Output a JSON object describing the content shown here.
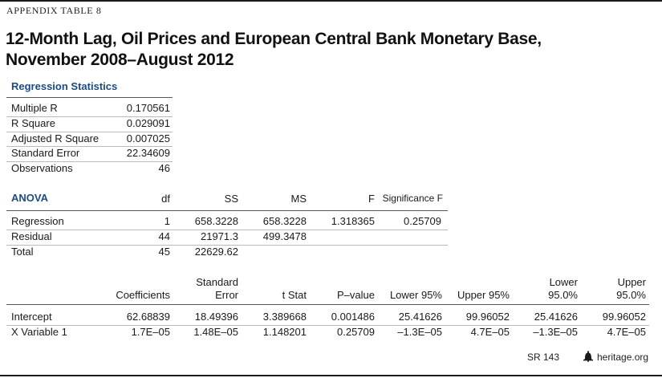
{
  "appendix_label": "APPENDIX TABLE 8",
  "title_line1": "12-Month Lag, Oil Prices and European Central Bank Monetary Base,",
  "title_line2": "November 2008–August 2012",
  "regression_statistics": {
    "heading": "Regression Statistics",
    "rows": [
      {
        "label": "Multiple R",
        "value": "0.170561"
      },
      {
        "label": "R Square",
        "value": "0.029091"
      },
      {
        "label": "Adjusted R Square",
        "value": "0.007025"
      },
      {
        "label": "Standard Error",
        "value": "22.34609"
      },
      {
        "label": "Observations",
        "value": "46"
      }
    ]
  },
  "anova": {
    "heading": "ANOVA",
    "columns": [
      "df",
      "SS",
      "MS",
      "F",
      "Significance F"
    ],
    "rows": [
      {
        "label": "Regression",
        "df": "1",
        "ss": "658.3228",
        "ms": "658.3228",
        "f": "1.318365",
        "sig_f": "0.25709"
      },
      {
        "label": "Residual",
        "df": "44",
        "ss": "21971.3",
        "ms": "499.3478",
        "f": "",
        "sig_f": ""
      },
      {
        "label": "Total",
        "df": "45",
        "ss": "22629.62",
        "ms": "",
        "f": "",
        "sig_f": ""
      }
    ]
  },
  "coefficients": {
    "columns": [
      {
        "line1": "",
        "line2": "Coefficients"
      },
      {
        "line1": "Standard",
        "line2": "Error"
      },
      {
        "line1": "",
        "line2": "t Stat"
      },
      {
        "line1": "",
        "line2": "P–value"
      },
      {
        "line1": "",
        "line2": "Lower 95%"
      },
      {
        "line1": "",
        "line2": "Upper 95%"
      },
      {
        "line1": "Lower",
        "line2": "95.0%"
      },
      {
        "line1": "Upper",
        "line2": "95.0%"
      }
    ],
    "rows": [
      {
        "label": "Intercept",
        "values": [
          "62.68839",
          "18.49396",
          "3.389668",
          "0.001486",
          "25.41626",
          "99.96052",
          "25.41626",
          "99.96052"
        ]
      },
      {
        "label": "X Variable 1",
        "values": [
          "1.7E–05",
          "1.48E–05",
          "1.148201",
          "0.25709",
          "–1.3E–05",
          "4.7E–05",
          "–1.3E–05",
          "4.7E–05"
        ]
      }
    ]
  },
  "footer": {
    "code": "SR 143",
    "icon": "liberty-bell-icon",
    "site": "heritage.org"
  }
}
